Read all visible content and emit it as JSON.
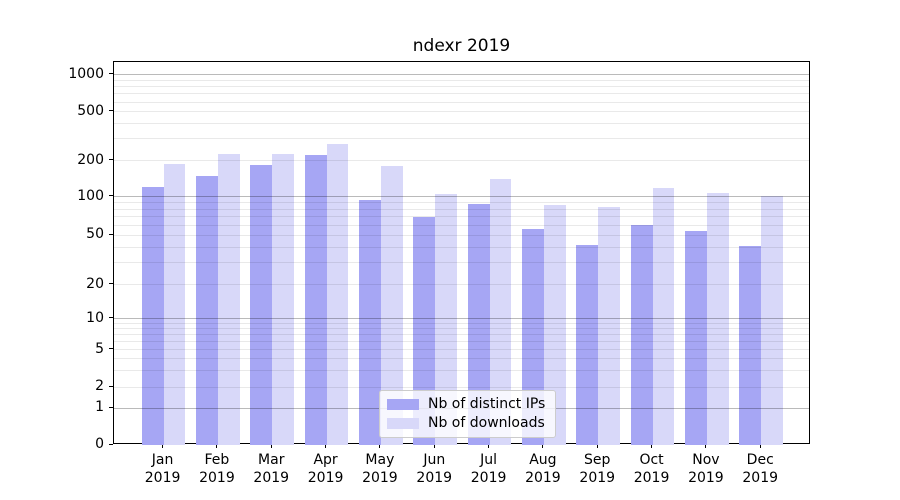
{
  "chart_data": {
    "type": "bar",
    "title": "ndexr 2019",
    "categories": [
      "Jan 2019",
      "Feb 2019",
      "Mar 2019",
      "Apr 2019",
      "May 2019",
      "Jun 2019",
      "Jul 2019",
      "Aug 2019",
      "Sep 2019",
      "Oct 2019",
      "Nov 2019",
      "Dec 2019"
    ],
    "series": [
      {
        "name": "Nb of distinct IPs",
        "color": "#a6a6f4",
        "values": [
          121,
          150,
          182,
          220,
          95,
          70,
          88,
          56,
          42,
          60,
          54,
          41
        ]
      },
      {
        "name": "Nb of downloads",
        "color": "#d8d8f9",
        "values": [
          187,
          225,
          227,
          272,
          181,
          106,
          141,
          86,
          83,
          119,
          108,
          102
        ]
      }
    ],
    "xlabel": "",
    "ylabel": "",
    "yscale": "symlog",
    "ylim": [
      0,
      1260
    ],
    "y_ticks": [
      0,
      1,
      2,
      5,
      10,
      20,
      50,
      100,
      200,
      500,
      1000
    ],
    "grid": true,
    "legend_position": "lower center"
  },
  "y_axis": {
    "tick_labels": [
      "0",
      "1",
      "2",
      "5",
      "10",
      "20",
      "50",
      "100",
      "200",
      "500",
      "1000"
    ],
    "grid_major_values": [
      1,
      10,
      100,
      1000
    ],
    "grid_minor_values": [
      2,
      3,
      4,
      5,
      6,
      7,
      8,
      9,
      20,
      30,
      40,
      50,
      60,
      70,
      80,
      90,
      200,
      300,
      400,
      500,
      600,
      700,
      800,
      900
    ]
  },
  "colors": {
    "bar_ips": "#a6a6f4",
    "bar_downloads": "#d8d8f9",
    "axis": "#000000"
  }
}
